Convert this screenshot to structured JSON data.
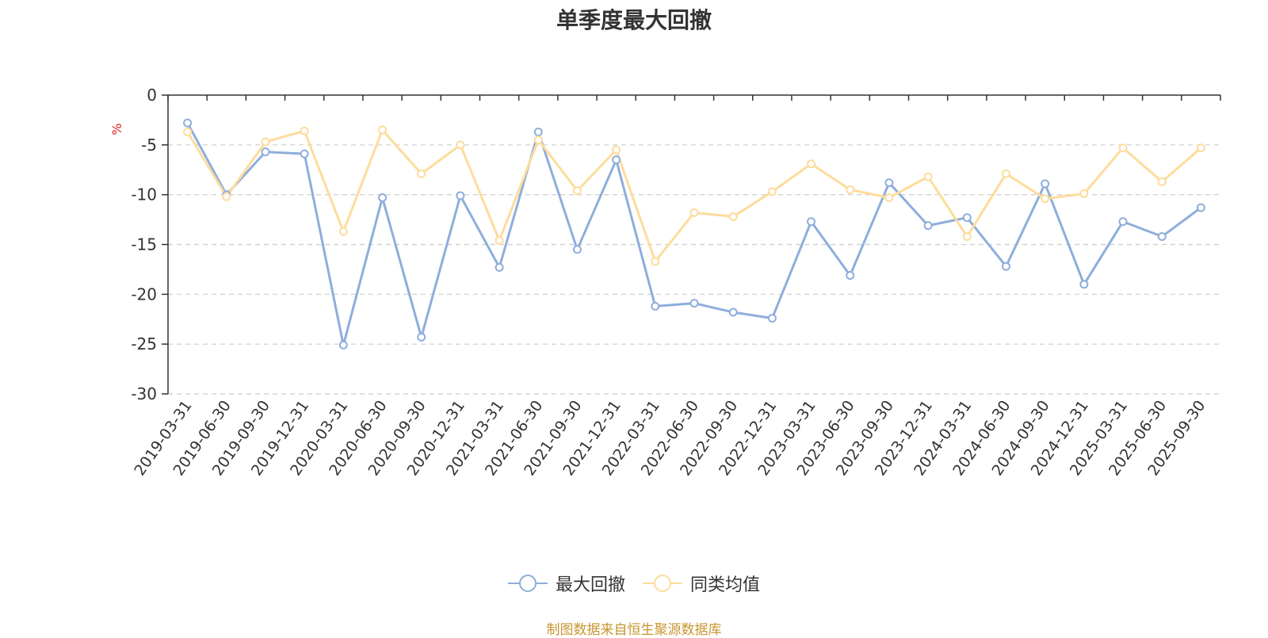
{
  "chart_data": {
    "type": "line",
    "title": "单季度最大回撤",
    "ylabel": "%",
    "ylim": [
      -30,
      0
    ],
    "yticks": [
      0,
      -5,
      -10,
      -15,
      -20,
      -25,
      -30
    ],
    "grid": true,
    "legend_position": "bottom",
    "categories": [
      "2019-03-31",
      "2019-06-30",
      "2019-09-30",
      "2019-12-31",
      "2020-03-31",
      "2020-06-30",
      "2020-09-30",
      "2020-12-31",
      "2021-03-31",
      "2021-06-30",
      "2021-09-30",
      "2021-12-31",
      "2022-03-31",
      "2022-06-30",
      "2022-09-30",
      "2022-12-31",
      "2023-03-31",
      "2023-06-30",
      "2023-09-30",
      "2023-12-31",
      "2024-03-31",
      "2024-06-30",
      "2024-09-30",
      "2024-12-31",
      "2025-03-31",
      "2025-06-30",
      "2025-09-30"
    ],
    "series": [
      {
        "name": "最大回撤",
        "color": "#8eaedb",
        "values": [
          -2.8,
          -10.0,
          -5.7,
          -5.9,
          -25.1,
          -10.3,
          -24.3,
          -10.1,
          -17.3,
          -3.7,
          -15.5,
          -6.5,
          -21.2,
          -20.9,
          -21.8,
          -22.4,
          -12.7,
          -18.1,
          -8.8,
          -13.1,
          -12.3,
          -17.2,
          -8.9,
          -19.0,
          -12.7,
          -14.2,
          -11.3
        ]
      },
      {
        "name": "同类均值",
        "color": "#fddc9c",
        "values": [
          -3.7,
          -10.2,
          -4.7,
          -3.6,
          -13.7,
          -3.5,
          -7.9,
          -5.0,
          -14.6,
          -4.5,
          -9.6,
          -5.5,
          -16.7,
          -11.8,
          -12.2,
          -9.7,
          -6.9,
          -9.5,
          -10.3,
          -8.2,
          -14.2,
          -7.9,
          -10.4,
          -9.9,
          -5.3,
          -8.7,
          -5.3
        ]
      }
    ]
  },
  "source_text": "制图数据来自恒生聚源数据库"
}
